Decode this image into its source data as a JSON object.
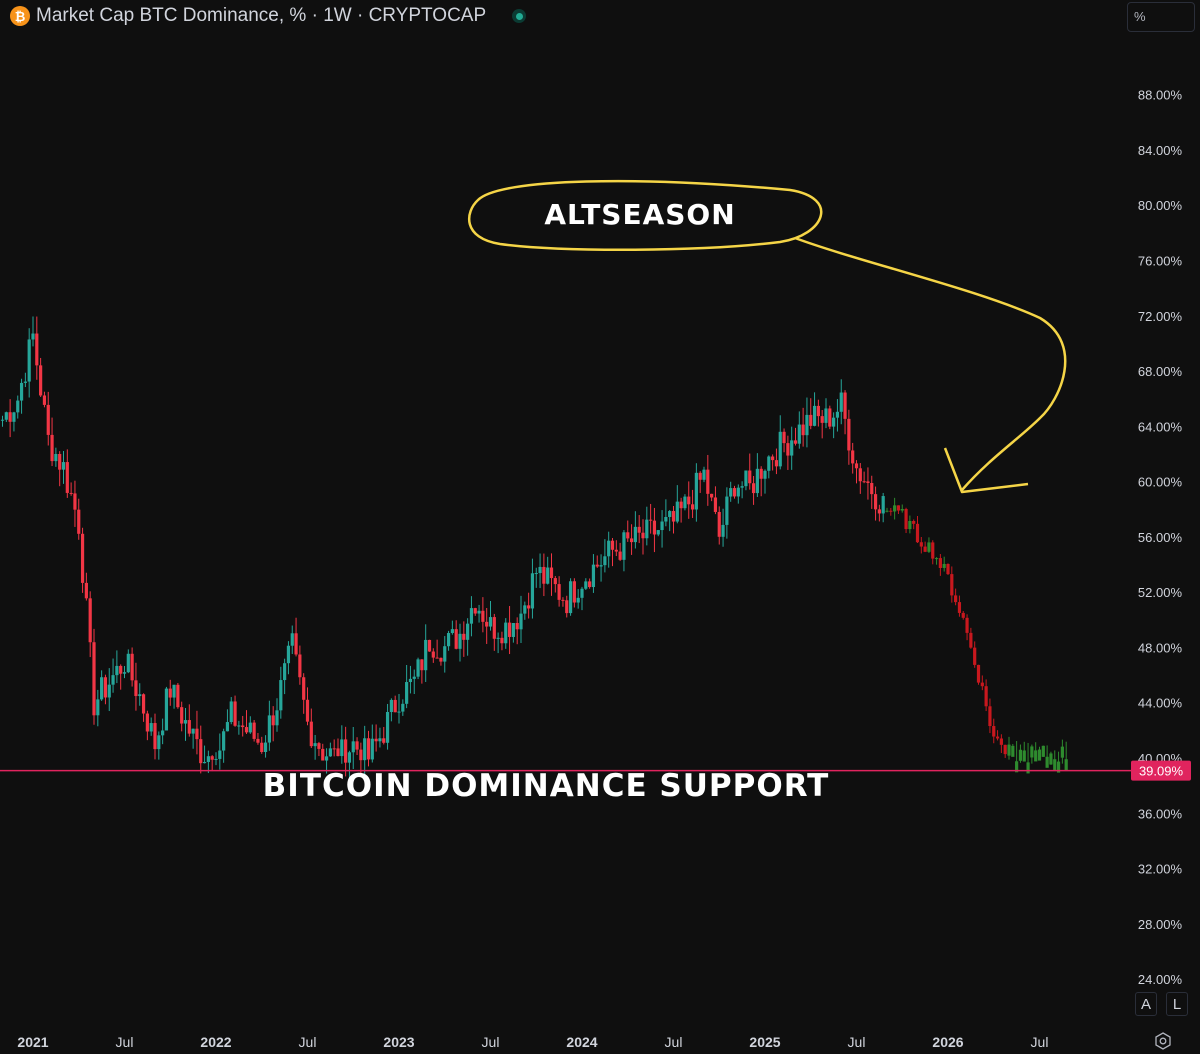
{
  "header": {
    "symbol_icon": "bitcoin-icon",
    "title": "Market Cap BTC Dominance, % · 1W · CRYPTOCAP",
    "status_icon": "market-open-dot-icon"
  },
  "scale_mode": "%",
  "controls": {
    "auto_label": "A",
    "log_label": "L",
    "settings_icon": "gear-icon"
  },
  "colors": {
    "background": "#0f0f0f",
    "up": "#26a69a",
    "down": "#f23645",
    "projection_up": "#2e8b2e",
    "projection_down": "#c8181e",
    "support_line": "#e0245e",
    "annotation_outline": "#f5d547"
  },
  "chart_data": {
    "type": "candlestick",
    "title": "Market Cap BTC Dominance, % · 1W · CRYPTOCAP",
    "ylim": [
      21,
      93
    ],
    "y_ticks": [
      "88.00%",
      "84.00%",
      "80.00%",
      "76.00%",
      "72.00%",
      "68.00%",
      "64.00%",
      "60.00%",
      "56.00%",
      "52.00%",
      "48.00%",
      "44.00%",
      "40.00%",
      "36.00%",
      "32.00%",
      "28.00%",
      "24.00%"
    ],
    "x_ticks": [
      {
        "label": "2021",
        "date": "2021-01",
        "bold": true
      },
      {
        "label": "Jul",
        "date": "2021-07",
        "bold": false
      },
      {
        "label": "2022",
        "date": "2022-01",
        "bold": true
      },
      {
        "label": "Jul",
        "date": "2022-07",
        "bold": false
      },
      {
        "label": "2023",
        "date": "2023-01",
        "bold": true
      },
      {
        "label": "Jul",
        "date": "2023-07",
        "bold": false
      },
      {
        "label": "2024",
        "date": "2024-01",
        "bold": true
      },
      {
        "label": "Jul",
        "date": "2024-07",
        "bold": false
      },
      {
        "label": "2025",
        "date": "2025-01",
        "bold": true
      },
      {
        "label": "Jul",
        "date": "2025-07",
        "bold": false
      },
      {
        "label": "2026",
        "date": "2026-01",
        "bold": true
      },
      {
        "label": "Jul",
        "date": "2026-07",
        "bold": false
      }
    ],
    "price_path": [
      [
        "2020-11",
        64.5
      ],
      [
        "2020-12",
        66.0
      ],
      [
        "2021-01",
        70.5
      ],
      [
        "2021-02",
        63.0
      ],
      [
        "2021-03",
        61.0
      ],
      [
        "2021-04",
        57.0
      ],
      [
        "2021-05",
        44.0
      ],
      [
        "2021-06",
        45.5
      ],
      [
        "2021-07",
        47.0
      ],
      [
        "2021-08",
        44.5
      ],
      [
        "2021-09",
        41.0
      ],
      [
        "2021-10",
        45.0
      ],
      [
        "2021-11",
        42.5
      ],
      [
        "2021-12",
        40.5
      ],
      [
        "2022-01",
        40.0
      ],
      [
        "2022-02",
        43.0
      ],
      [
        "2022-03",
        42.0
      ],
      [
        "2022-04",
        41.0
      ],
      [
        "2022-05",
        44.0
      ],
      [
        "2022-06",
        48.0
      ],
      [
        "2022-07",
        42.5
      ],
      [
        "2022-08",
        40.5
      ],
      [
        "2022-09",
        40.0
      ],
      [
        "2022-10",
        41.0
      ],
      [
        "2022-11",
        40.0
      ],
      [
        "2022-12",
        42.0
      ],
      [
        "2023-01",
        44.5
      ],
      [
        "2023-02",
        45.5
      ],
      [
        "2023-03",
        48.5
      ],
      [
        "2023-04",
        48.0
      ],
      [
        "2023-05",
        49.0
      ],
      [
        "2023-06",
        51.5
      ],
      [
        "2023-07",
        49.5
      ],
      [
        "2023-08",
        49.5
      ],
      [
        "2023-09",
        50.5
      ],
      [
        "2023-10",
        53.5
      ],
      [
        "2023-11",
        52.5
      ],
      [
        "2023-12",
        51.5
      ],
      [
        "2024-01",
        53.0
      ],
      [
        "2024-02",
        54.0
      ],
      [
        "2024-03",
        55.0
      ],
      [
        "2024-04",
        55.5
      ],
      [
        "2024-05",
        56.0
      ],
      [
        "2024-06",
        56.5
      ],
      [
        "2024-07",
        57.0
      ],
      [
        "2024-08",
        58.5
      ],
      [
        "2024-09",
        60.5
      ],
      [
        "2024-10",
        56.0
      ],
      [
        "2024-11",
        60.0
      ],
      [
        "2024-12",
        59.5
      ],
      [
        "2025-01",
        61.5
      ],
      [
        "2025-02",
        62.5
      ],
      [
        "2025-03",
        63.5
      ],
      [
        "2025-04",
        64.5
      ],
      [
        "2025-05",
        64.5
      ],
      [
        "2025-06",
        65.5
      ],
      [
        "2025-07",
        61.0
      ],
      [
        "2025-08",
        59.5
      ],
      [
        "2025-09",
        58.0
      ]
    ],
    "projection_path": [
      [
        "2025-09",
        58.0
      ],
      [
        "2025-10",
        57.5
      ],
      [
        "2025-11",
        56.0
      ],
      [
        "2025-12",
        55.0
      ],
      [
        "2026-01",
        53.0
      ],
      [
        "2026-02",
        50.0
      ],
      [
        "2026-03",
        46.0
      ],
      [
        "2026-04",
        41.5
      ],
      [
        "2026-05",
        40.3
      ],
      [
        "2026-06",
        40.3
      ],
      [
        "2026-07",
        40.3
      ],
      [
        "2026-08",
        40.3
      ],
      [
        "2026-09",
        40.3
      ]
    ],
    "support_level": 39.09,
    "support_label": "39.09%",
    "annotations": [
      {
        "text": "ALTSEASON"
      },
      {
        "text": "BITCOIN DOMINANCE SUPPORT"
      }
    ]
  }
}
